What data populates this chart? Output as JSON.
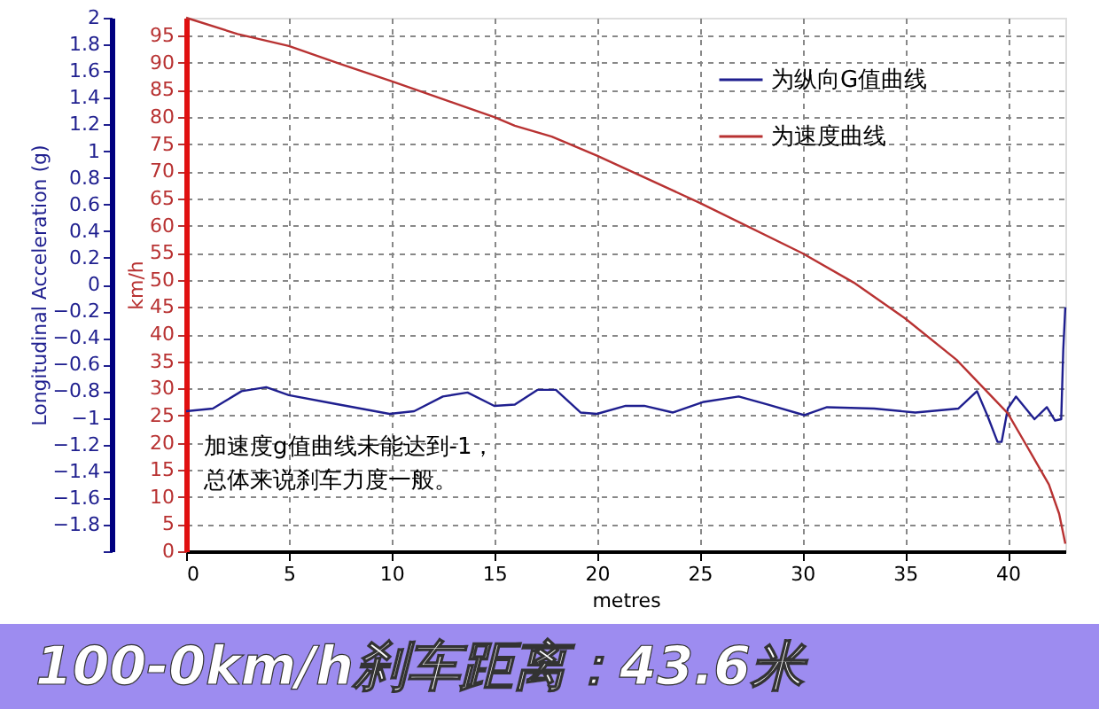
{
  "chart_data": {
    "type": "line",
    "xlabel": "metres",
    "ylabel": "Longitudinal Acceleration (g)",
    "y2label": "km/h",
    "xlim": [
      0,
      42.8
    ],
    "xticks": [
      0,
      5,
      10,
      15,
      20,
      25,
      30,
      35,
      40
    ],
    "ylim": [
      -2,
      2
    ],
    "yticks": [
      {
        "value": -2,
        "label": null
      },
      -1.8,
      -1.6,
      -1.4,
      -1.2,
      -1,
      -0.8,
      -0.6,
      -0.4,
      -0.2,
      0,
      0.2,
      0.4,
      0.6,
      0.8,
      1,
      1.2,
      1.4,
      1.6,
      1.8,
      2
    ],
    "y2lim": [
      0,
      98.3
    ],
    "y2ticks": [
      0,
      5,
      10,
      15,
      20,
      25,
      30,
      35,
      40,
      45,
      50,
      55,
      60,
      65,
      70,
      75,
      80,
      85,
      90,
      95
    ],
    "grid": true,
    "legend": "top right",
    "line_style": "solid",
    "series": [
      {
        "name": "为纵向G值曲线",
        "color": "#1f1f8f",
        "axis": "y",
        "x": [
          0,
          1.3,
          2.7,
          3.9,
          5,
          7.1,
          9.9,
          11.1,
          12.5,
          13.7,
          15,
          16,
          17.1,
          18,
          19.2,
          20,
          21.4,
          22.3,
          23.7,
          25.2,
          26.9,
          28.3,
          30.1,
          31.2,
          33.5,
          35.5,
          37.6,
          38.5,
          39,
          39.5,
          39.7,
          40,
          40.4,
          41.3,
          41.9,
          42.3,
          42.6,
          42.7,
          42.8
        ],
        "values": [
          -0.95,
          -0.93,
          -0.8,
          -0.77,
          -0.83,
          -0.89,
          -0.97,
          -0.95,
          -0.84,
          -0.81,
          -0.91,
          -0.9,
          -0.79,
          -0.79,
          -0.96,
          -0.97,
          -0.91,
          -0.91,
          -0.96,
          -0.88,
          -0.84,
          -0.9,
          -0.98,
          -0.92,
          -0.93,
          -0.96,
          -0.93,
          -0.8,
          -0.98,
          -1.18,
          -1.18,
          -0.93,
          -0.84,
          -1.01,
          -0.92,
          -1.02,
          -1.01,
          -0.49,
          -0.17
        ]
      },
      {
        "name": "为速度曲线",
        "color": "#b83232",
        "axis": "y2",
        "x": [
          0,
          2.5,
          5,
          7.5,
          10,
          12.5,
          15,
          16,
          17.8,
          20,
          25,
          30,
          32.5,
          35,
          37.5,
          40,
          41,
          42,
          42.5,
          42.8
        ],
        "values": [
          98.3,
          95.3,
          93.1,
          89.8,
          86.6,
          83.3,
          80,
          78.4,
          76.4,
          72.9,
          64.2,
          54.9,
          49.5,
          42.9,
          35.3,
          25.4,
          18.9,
          12.3,
          6.9,
          1.4
        ]
      }
    ],
    "annotations": [
      "加速度g值曲线未能达到-1，",
      "总体来说刹车力度一般。",
      "100-0km/h刹车距离：43.6米"
    ]
  }
}
